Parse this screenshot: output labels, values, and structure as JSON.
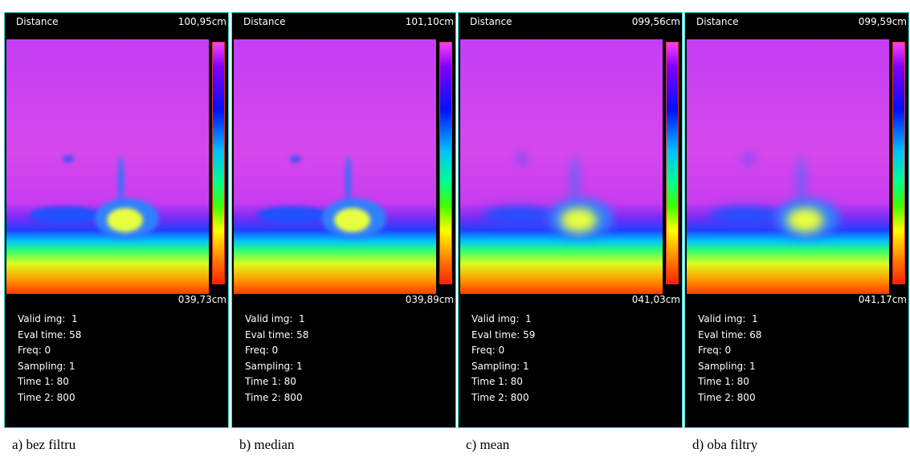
{
  "panels": [
    {
      "title": "Distance",
      "max": "100,95cm",
      "min": "039,73cm",
      "stats": [
        "Valid img:  1",
        "Eval time: 58",
        "Freq: 0",
        "Sampling: 1",
        "Time 1: 80",
        "Time 2: 800"
      ],
      "caption": "a) bez filtru"
    },
    {
      "title": "Distance",
      "max": "101,10cm",
      "min": "039,89cm",
      "stats": [
        "Valid img:  1",
        "Eval time: 58",
        "Freq: 0",
        "Sampling: 1",
        "Time 1: 80",
        "Time 2: 800"
      ],
      "caption": "b) median"
    },
    {
      "title": "Distance",
      "max": "099,56cm",
      "min": "041,03cm",
      "stats": [
        "Valid img:  1",
        "Eval time: 59",
        "Freq: 0",
        "Sampling: 1",
        "Time 1: 80",
        "Time 2: 800"
      ],
      "caption": "c) mean"
    },
    {
      "title": "Distance",
      "max": "099,59cm",
      "min": "041,17cm",
      "stats": [
        "Valid img:  1",
        "Eval time: 68",
        "Freq: 0",
        "Sampling: 1",
        "Time 1: 80",
        "Time 2: 800"
      ],
      "caption": "d) oba filtry"
    }
  ]
}
